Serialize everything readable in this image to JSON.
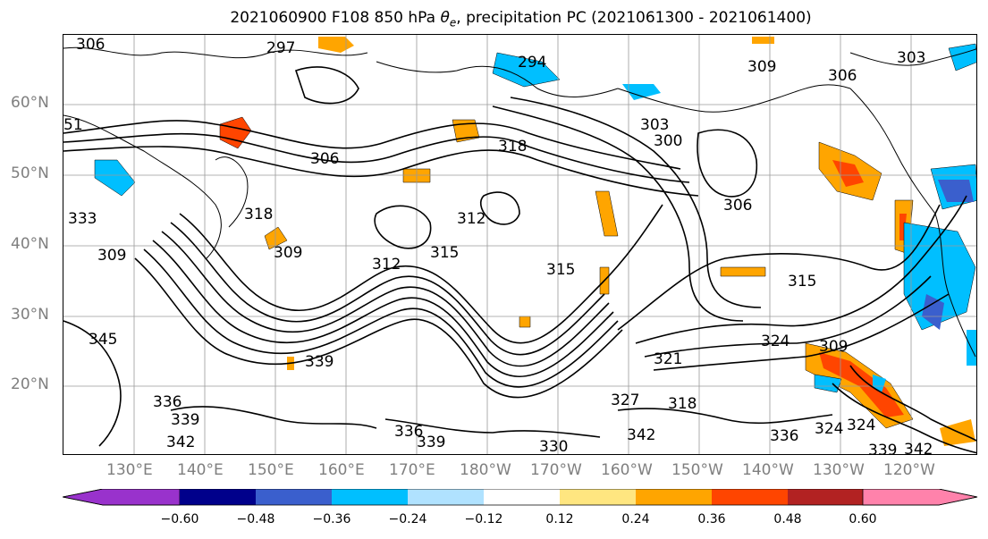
{
  "title": {
    "prefix": "2021060900 F108 850 hPa ",
    "symbol": "θ",
    "subscript": "e",
    "suffix": ", precipitation PC (2021061300 - 2021061400)"
  },
  "map": {
    "lat_ticks": [
      "60°N",
      "50°N",
      "40°N",
      "30°N",
      "20°N"
    ],
    "lon_ticks": [
      "130°E",
      "140°E",
      "150°E",
      "160°E",
      "170°E",
      "180°W",
      "170°W",
      "160°W",
      "150°W",
      "140°W",
      "130°W",
      "120°W"
    ],
    "contour_labels": [
      "306",
      "297",
      "294",
      "309",
      "306",
      "303",
      "51",
      "303",
      "300",
      "318",
      "306",
      "306",
      "312",
      "333",
      "318",
      "309",
      "315",
      "312",
      "315",
      "315",
      "309",
      "345",
      "339",
      "321",
      "324",
      "309",
      "336",
      "339",
      "342",
      "336",
      "339",
      "327",
      "318",
      "342",
      "330",
      "336",
      "324",
      "324",
      "339",
      "342"
    ]
  },
  "colorbar": {
    "colors": [
      "#9932cc",
      "#00008b",
      "#3a5fcd",
      "#00bfff",
      "#b0e2ff",
      "#ffffff",
      "#ffe680",
      "#ffa500",
      "#ff4500",
      "#b22222",
      "#ff82ab"
    ],
    "tick_labels": [
      "−0.60",
      "−0.48",
      "−0.36",
      "−0.24",
      "−0.12",
      "0.12",
      "0.24",
      "0.36",
      "0.48",
      "0.60"
    ]
  }
}
